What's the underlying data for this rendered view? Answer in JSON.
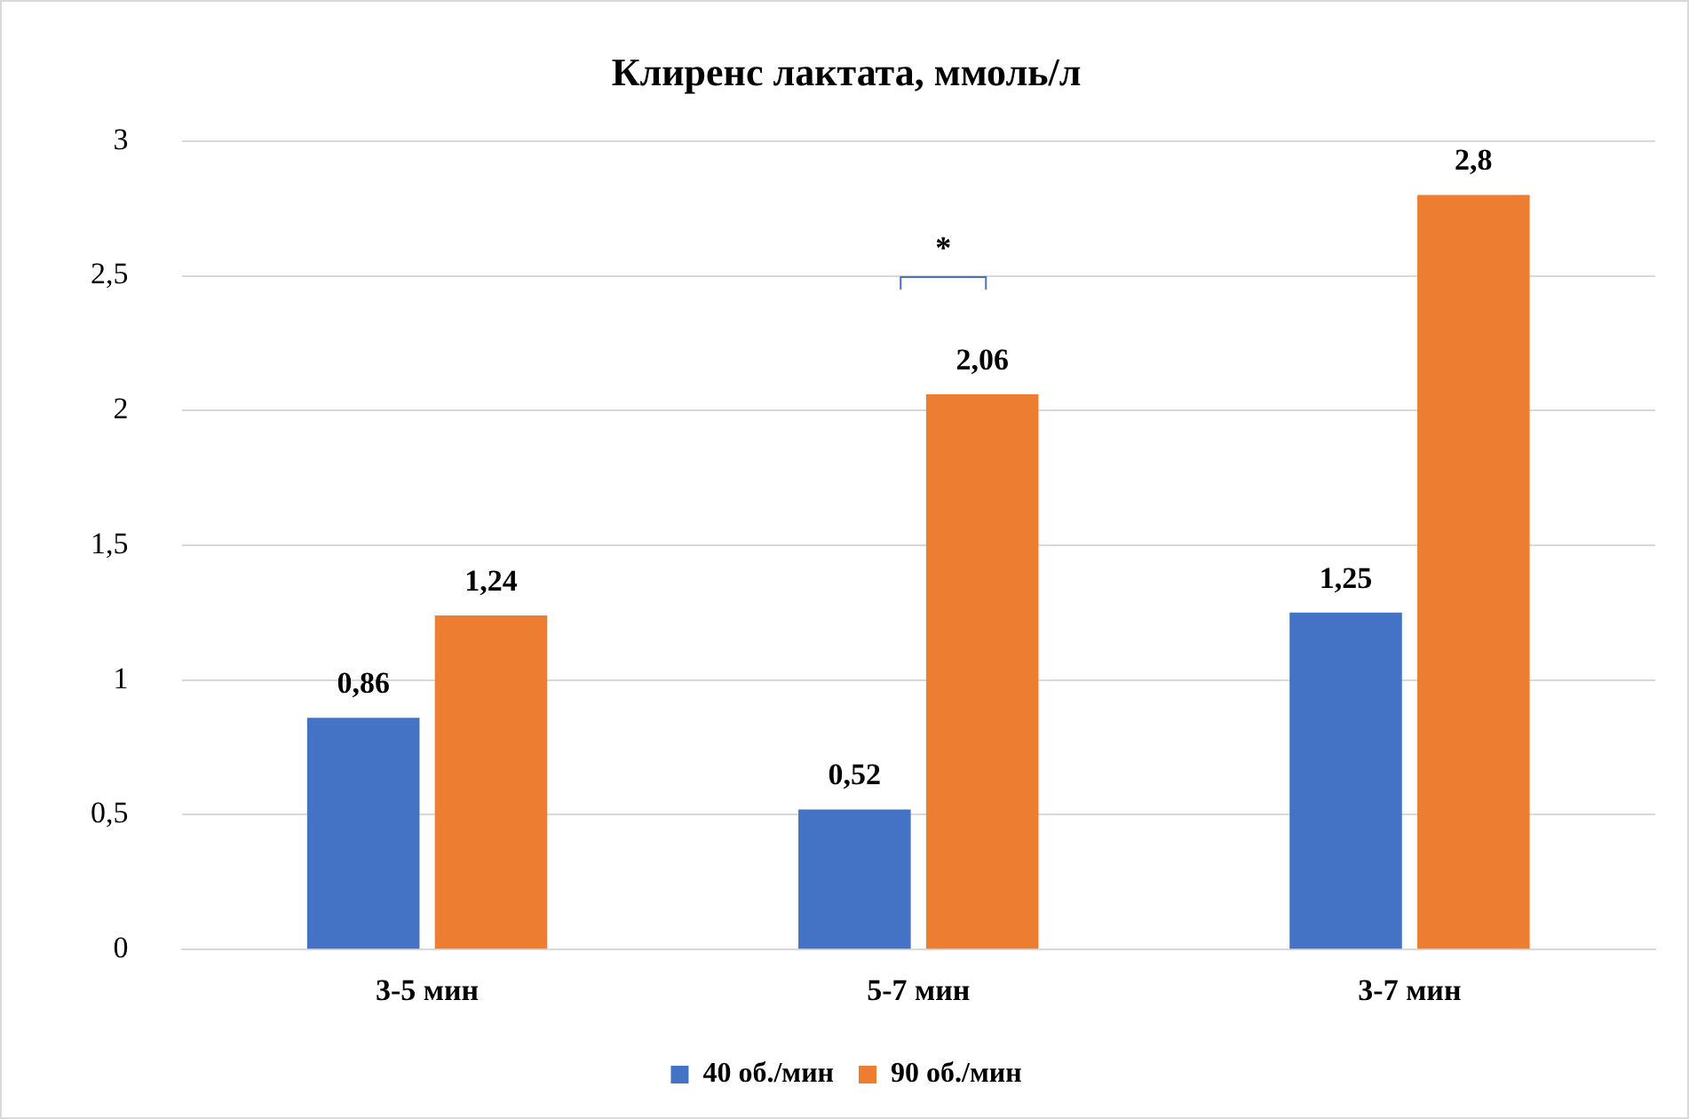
{
  "chart_data": {
    "type": "bar",
    "title": "Клиренс лактата, ммоль/л",
    "categories": [
      "3-5 мин",
      "5-7 мин",
      "3-7 мин"
    ],
    "series": [
      {
        "name": "40 об./мин",
        "color": "#4472c4",
        "values": [
          0.86,
          0.52,
          1.25
        ],
        "value_labels": [
          "0,86",
          "0,52",
          "1,25"
        ]
      },
      {
        "name": "90 об./мин",
        "color": "#ed7d31",
        "values": [
          1.24,
          2.06,
          2.8
        ],
        "value_labels": [
          "1,24",
          "2,06",
          "2,8"
        ]
      }
    ],
    "ylim": [
      0,
      3
    ],
    "yticks": [
      0,
      {
        "value": 0.5,
        "label": "0,5"
      },
      1,
      {
        "value": 1.5,
        "label": "1,5"
      },
      2,
      {
        "value": 2.5,
        "label": "2,5"
      },
      3
    ],
    "grid": "y",
    "legend": "bottom",
    "annotations": [
      "*"
    ]
  }
}
